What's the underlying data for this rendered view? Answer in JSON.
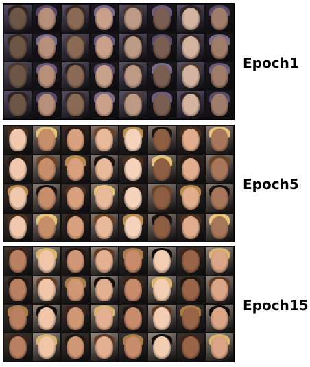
{
  "figure": {
    "panels": [
      {
        "label": "Epoch1",
        "rows": 4,
        "cols": 8,
        "palette": [
          "#c9a08a",
          "#8a6a55",
          "#b88f7a",
          "#6d5646",
          "#a07d6b",
          "#d4b3a0",
          "#7a5e52",
          "#bd9a86"
        ],
        "hair": [
          "#3a2a24",
          "#5a4a6a",
          "#2e2320",
          "#6b5a7a",
          "#4a3a30",
          "#7a6a8a"
        ],
        "bg": [
          "#3b3440",
          "#5a5068",
          "#2a2430",
          "#6a6078",
          "#1f1a22",
          "#4a4252"
        ]
      },
      {
        "label": "Epoch5",
        "rows": 4,
        "cols": 8,
        "palette": [
          "#e8b99a",
          "#d9a07f",
          "#c78e6b",
          "#f0c8ad",
          "#a8765a",
          "#e2ad8d",
          "#8e5e42",
          "#f4d2bb"
        ],
        "hair": [
          "#2a1b14",
          "#e6c47a",
          "#4a2e1e",
          "#1a1210",
          "#b88a4e",
          "#6b4428"
        ],
        "bg": [
          "#1c1a1f",
          "#3a2e2a",
          "#5a5450",
          "#2a2832",
          "#8a7a70",
          "#151317"
        ]
      },
      {
        "label": "Epoch15",
        "rows": 4,
        "cols": 8,
        "palette": [
          "#e4b092",
          "#cf9776",
          "#f1c6a8",
          "#b98062",
          "#dba588",
          "#9a6448",
          "#f3cdb2",
          "#c88b6c"
        ],
        "hair": [
          "#231711",
          "#d9b56e",
          "#3c2417",
          "#120c0a",
          "#a97d45",
          "#5e3b22"
        ],
        "bg": [
          "#221e24",
          "#3e3430",
          "#6a625c",
          "#2c2a34",
          "#95877c",
          "#18161a"
        ]
      }
    ]
  }
}
